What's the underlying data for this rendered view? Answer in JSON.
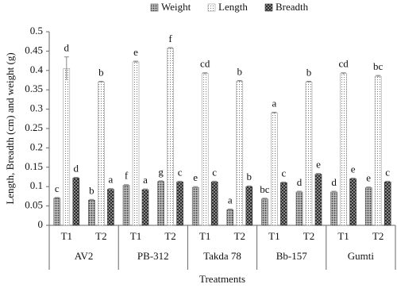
{
  "chart_data": {
    "type": "bar",
    "y_label": "Length, Breadth (cm) and weight (g)",
    "x_label": "Treatments",
    "groups": [
      "AV2",
      "PB-312",
      "Takda 78",
      "Bb-157",
      "Gumti"
    ],
    "categories": [
      "T1",
      "T2",
      "T1",
      "T2",
      "T1",
      "T2",
      "T1",
      "T2",
      "T1",
      "T2"
    ],
    "series": [
      {
        "name": "Weight",
        "color": "#555555",
        "pattern": "dots-dense",
        "values": [
          0.07,
          0.065,
          0.103,
          0.113,
          0.098,
          0.04,
          0.068,
          0.086,
          0.086,
          0.097
        ],
        "errors": [
          0.002,
          0.002,
          0.002,
          0.002,
          0.002,
          0.002,
          0.002,
          0.002,
          0.002,
          0.002
        ],
        "letters": [
          "c",
          "b",
          "f",
          "g",
          "e",
          "a",
          "bc",
          "d",
          "d",
          "e"
        ]
      },
      {
        "name": "Length",
        "color": "#9a9a9a",
        "pattern": "dots-light",
        "values": [
          0.405,
          0.37,
          0.422,
          0.457,
          0.392,
          0.372,
          0.29,
          0.37,
          0.392,
          0.385
        ],
        "errors": [
          0.03,
          0.002,
          0.002,
          0.002,
          0.002,
          0.002,
          0.002,
          0.002,
          0.002,
          0.002
        ],
        "letters": [
          "d",
          "b",
          "e",
          "f",
          "cd",
          "b",
          "a",
          "b",
          "cd",
          "bc"
        ]
      },
      {
        "name": "Breadth",
        "color": "#333333",
        "pattern": "cross",
        "values": [
          0.122,
          0.093,
          0.092,
          0.112,
          0.112,
          0.1,
          0.11,
          0.132,
          0.12,
          0.112
        ],
        "errors": [
          0.002,
          0.002,
          0.002,
          0.002,
          0.002,
          0.002,
          0.002,
          0.002,
          0.002,
          0.002
        ],
        "letters": [
          "d",
          "a",
          "a",
          "c",
          "c",
          "b",
          "c",
          "e",
          "e",
          "c"
        ]
      }
    ],
    "ylim": [
      0,
      0.5
    ],
    "yticks": [
      0,
      0.05,
      0.1,
      0.15,
      0.2,
      0.25,
      0.3,
      0.35,
      0.4,
      0.45,
      0.5
    ],
    "legend": "top",
    "grid": false
  }
}
